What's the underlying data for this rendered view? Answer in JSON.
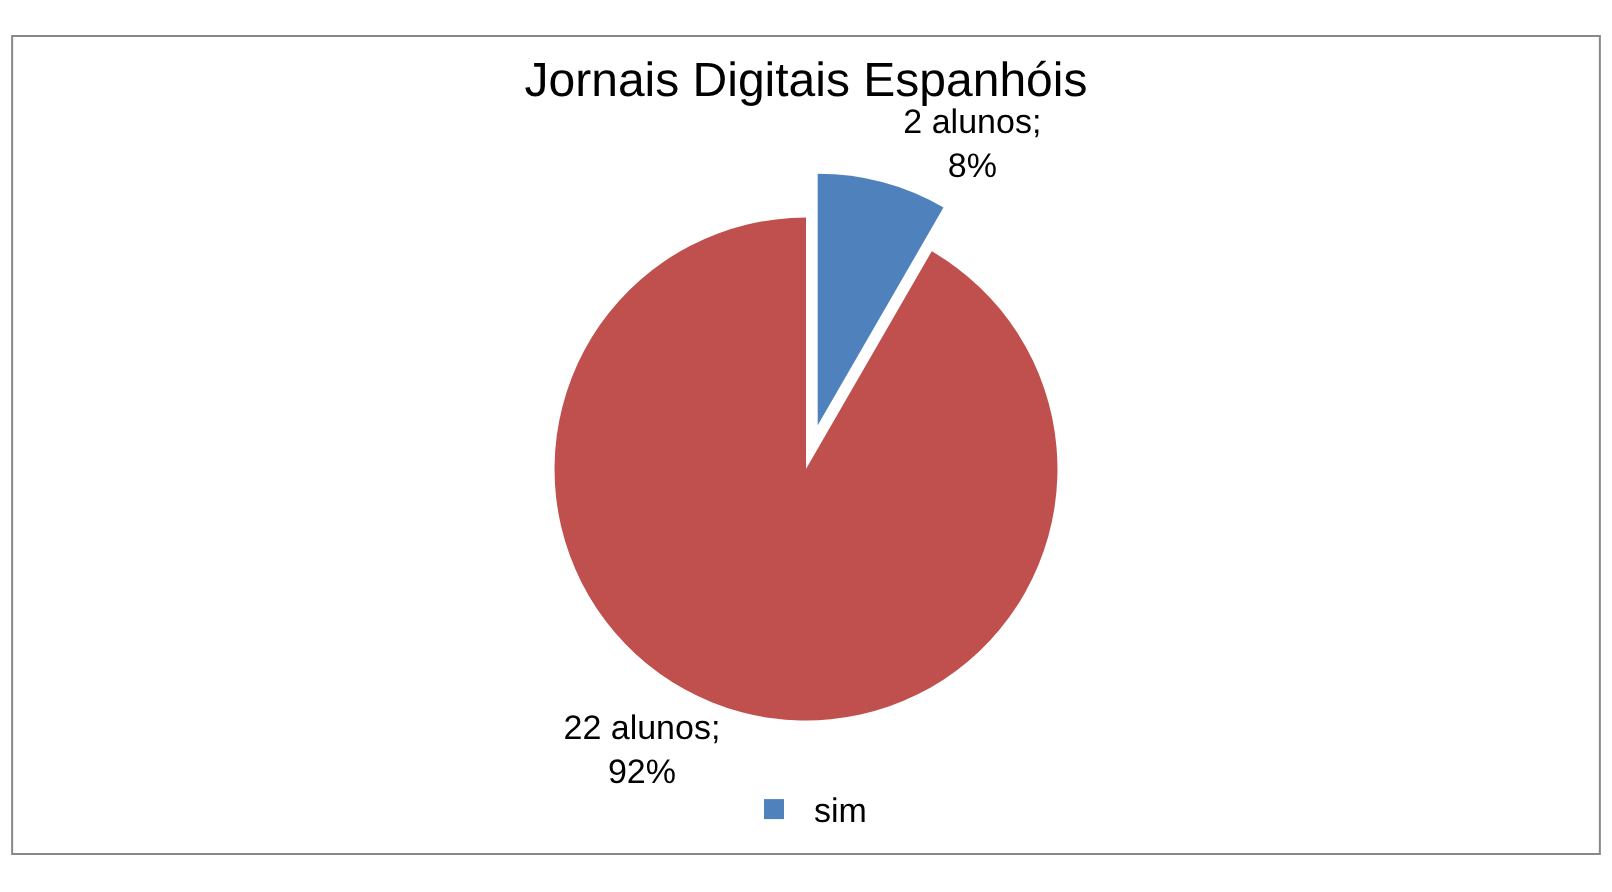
{
  "chart_data": {
    "type": "pie",
    "title": "Jornais Digitais Espanhóis",
    "categories": [
      "sim",
      null
    ],
    "values": [
      2,
      22
    ],
    "colors": [
      "#4f81bd",
      "#c0504d"
    ],
    "value_labels": [
      "2 alunos;\n8%",
      "22 alunos;\n92%"
    ],
    "legend": "bottom"
  }
}
